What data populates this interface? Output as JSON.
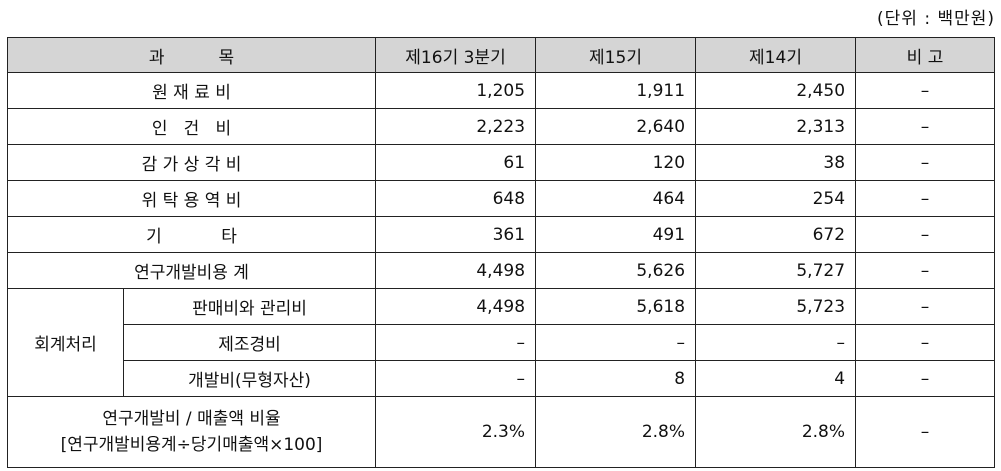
{
  "unit_label": "(단위 : 백만원)",
  "headers": [
    "과          목",
    "제16기 3분기",
    "제15기",
    "제14기",
    "비 고"
  ],
  "rows": [
    {
      "label": "원 재 료 비",
      "v": [
        "1,205",
        "1,911",
        "2,450"
      ],
      "note": "–"
    },
    {
      "label": "인   건   비",
      "v": [
        "2,223",
        "2,640",
        "2,313"
      ],
      "note": "–"
    },
    {
      "label": "감 가 상 각 비",
      "v": [
        "61",
        "120",
        "38"
      ],
      "note": "–"
    },
    {
      "label": "위 탁 용 역 비",
      "v": [
        "648",
        "464",
        "254"
      ],
      "note": "–"
    },
    {
      "label": "기           타",
      "v": [
        "361",
        "491",
        "672"
      ],
      "note": "–"
    },
    {
      "label": "연구개발비용 계",
      "v": [
        "4,498",
        "5,626",
        "5,727"
      ],
      "note": "–"
    }
  ],
  "accounting": {
    "group_label": "회계처리",
    "rows": [
      {
        "label": "판매비와 관리비",
        "v": [
          "4,498",
          "5,618",
          "5,723"
        ],
        "note": "–"
      },
      {
        "label": "제조경비",
        "v": [
          "–",
          "–",
          "–"
        ],
        "note": "–"
      },
      {
        "label": "개발비(무형자산)",
        "v": [
          "–",
          "8",
          "4"
        ],
        "note": "–"
      }
    ]
  },
  "ratio": {
    "label_line1": "연구개발비 / 매출액 비율",
    "label_line2": "[연구개발비용계÷당기매출액×100]",
    "v": [
      "2.3%",
      "2.8%",
      "2.8%"
    ],
    "note": "–"
  }
}
